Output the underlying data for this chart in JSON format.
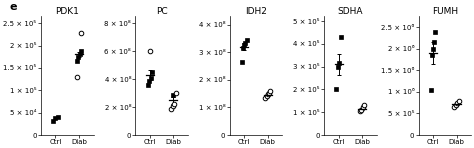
{
  "panels": [
    {
      "title": "PDK1",
      "ctrl_filled": [
        32000.0,
        38000.0,
        41000.0
      ],
      "ctrl_open": [],
      "diab_filled": [
        165000.0,
        175000.0,
        182000.0,
        188000.0
      ],
      "diab_open": [
        130000.0,
        228000.0
      ],
      "ctrl_mean": 36500.0,
      "ctrl_sem": 2500.0,
      "diab_mean": 180000.0,
      "diab_sem": 5000.0,
      "ylim": [
        0,
        265000.0
      ],
      "yticks": [
        0,
        50000.0,
        100000.0,
        150000.0,
        200000.0,
        250000.0
      ],
      "show_errorbar_ctrl": false,
      "show_errorbar_diab": true
    },
    {
      "title": "PC",
      "ctrl_filled": [
        360000000.0,
        385000000.0,
        410000000.0,
        450000000.0
      ],
      "ctrl_open": [
        600000000.0
      ],
      "diab_filled": [
        285000000.0
      ],
      "diab_open": [
        190000000.0,
        205000000.0,
        220000000.0,
        300000000.0
      ],
      "ctrl_mean": 430000000.0,
      "ctrl_sem": 35000000.0,
      "diab_mean": 250000000.0,
      "diab_sem": 25000000.0,
      "ylim": [
        0,
        850000000.0
      ],
      "yticks": [
        0,
        200000000.0,
        400000000.0,
        600000000.0,
        800000000.0
      ],
      "show_errorbar_ctrl": true,
      "show_errorbar_diab": true
    },
    {
      "title": "IDH2",
      "ctrl_filled": [
        265000000.0,
        315000000.0,
        325000000.0,
        335000000.0,
        345000000.0
      ],
      "ctrl_open": [],
      "diab_filled": [],
      "diab_open": [
        135000000.0,
        142000000.0,
        148000000.0,
        152000000.0,
        158000000.0
      ],
      "ctrl_mean": 320000000.0,
      "ctrl_sem": 13000000.0,
      "diab_mean": 147000000.0,
      "diab_sem": 5000000.0,
      "ylim": [
        0,
        430000000.0
      ],
      "yticks": [
        0,
        100000000.0,
        200000000.0,
        300000000.0,
        400000000.0
      ],
      "show_errorbar_ctrl": true,
      "show_errorbar_diab": true
    },
    {
      "title": "SDHA",
      "ctrl_filled": [
        200000.0,
        300000.0,
        315000.0,
        430000.0
      ],
      "ctrl_open": [],
      "diab_filled": [],
      "diab_open": [
        105000.0,
        110000.0,
        122000.0,
        130000.0
      ],
      "ctrl_mean": 310000.0,
      "ctrl_sem": 45000.0,
      "diab_mean": 115000.0,
      "diab_sem": 5000.0,
      "ylim": [
        0,
        520000.0
      ],
      "yticks": [
        0,
        100000.0,
        200000.0,
        300000.0,
        400000.0,
        500000.0
      ],
      "show_errorbar_ctrl": true,
      "show_errorbar_diab": true
    },
    {
      "title": "FUMH",
      "ctrl_filled": [
        1050000.0,
        1850000.0,
        2000000.0,
        2150000.0,
        2400000.0
      ],
      "ctrl_open": [],
      "diab_filled": [],
      "diab_open": [
        650000.0,
        700000.0,
        750000.0,
        800000.0
      ],
      "ctrl_mean": 1900000.0,
      "ctrl_sem": 250000.0,
      "diab_mean": 730000.0,
      "diab_sem": 25000.0,
      "ylim": [
        0,
        2750000.0
      ],
      "yticks": [
        0,
        500000.0,
        1000000.0,
        1500000.0,
        2000000.0,
        2500000.0
      ],
      "show_errorbar_ctrl": true,
      "show_errorbar_diab": true
    }
  ],
  "panel_label": "e",
  "xlabel_ctrl": "Ctrl",
  "xlabel_diab": "Diab",
  "dot_color": "black",
  "marker_filled": "s",
  "marker_open": "o",
  "markersize": 2.8,
  "capsize": 1.5,
  "elinewidth": 0.7,
  "tick_fontsize": 5.0,
  "title_fontsize": 6.5,
  "label_fontsize": 5.5
}
